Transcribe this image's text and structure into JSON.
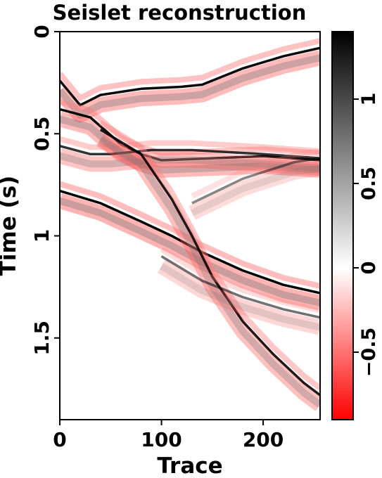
{
  "chart_data": {
    "type": "heatmap",
    "title": "Seislet reconstruction",
    "xlabel": "Trace",
    "ylabel": "Time (s)",
    "xlim": [
      0,
      256
    ],
    "ylim": [
      0,
      1.9
    ],
    "y_inverted": true,
    "x_ticks": [
      0,
      100,
      200
    ],
    "y_ticks": [
      0,
      0.5,
      1,
      1.5
    ],
    "colorbar": {
      "range": [
        -0.9,
        1.4
      ],
      "ticks": [
        -0.5,
        0,
        0.5,
        1
      ],
      "tick_labels": [
        "−0.5",
        "0",
        "0.5",
        "1"
      ],
      "colors": {
        "negative": "#ff0000",
        "zero": "#ffffff",
        "positive": "#000000"
      }
    },
    "events": [
      {
        "name": "event-1",
        "points": [
          [
            0,
            0.24
          ],
          [
            20,
            0.36
          ],
          [
            40,
            0.31
          ],
          [
            80,
            0.28
          ],
          [
            120,
            0.27
          ],
          [
            140,
            0.26
          ],
          [
            180,
            0.18
          ],
          [
            220,
            0.12
          ],
          [
            256,
            0.08
          ]
        ],
        "amp": 1.2
      },
      {
        "name": "event-2",
        "points": [
          [
            0,
            0.38
          ],
          [
            30,
            0.42
          ],
          [
            60,
            0.55
          ],
          [
            80,
            0.6
          ],
          [
            100,
            0.63
          ],
          [
            150,
            0.62
          ],
          [
            200,
            0.61
          ],
          [
            256,
            0.63
          ]
        ],
        "amp": 1.2
      },
      {
        "name": "event-3",
        "points": [
          [
            0,
            0.56
          ],
          [
            30,
            0.6
          ],
          [
            50,
            0.6
          ],
          [
            90,
            0.58
          ],
          [
            130,
            0.58
          ],
          [
            200,
            0.6
          ],
          [
            256,
            0.62
          ]
        ],
        "amp": 1.0
      },
      {
        "name": "event-4",
        "points": [
          [
            0,
            0.78
          ],
          [
            40,
            0.84
          ],
          [
            80,
            0.93
          ],
          [
            110,
            1.0
          ],
          [
            140,
            1.08
          ],
          [
            180,
            1.17
          ],
          [
            220,
            1.24
          ],
          [
            256,
            1.28
          ]
        ],
        "amp": 1.3
      },
      {
        "name": "event-5",
        "points": [
          [
            40,
            0.48
          ],
          [
            80,
            0.6
          ],
          [
            110,
            0.82
          ],
          [
            130,
            1.0
          ],
          [
            150,
            1.2
          ],
          [
            180,
            1.42
          ],
          [
            210,
            1.58
          ],
          [
            240,
            1.72
          ],
          [
            256,
            1.78
          ]
        ],
        "amp": 1.1
      },
      {
        "name": "event-6",
        "points": [
          [
            130,
            0.84
          ],
          [
            180,
            0.72
          ],
          [
            230,
            0.64
          ],
          [
            256,
            0.62
          ]
        ],
        "amp": 0.6
      },
      {
        "name": "event-7",
        "points": [
          [
            100,
            1.1
          ],
          [
            140,
            1.22
          ],
          [
            180,
            1.3
          ],
          [
            220,
            1.36
          ],
          [
            256,
            1.4
          ]
        ],
        "amp": 0.7
      }
    ]
  }
}
